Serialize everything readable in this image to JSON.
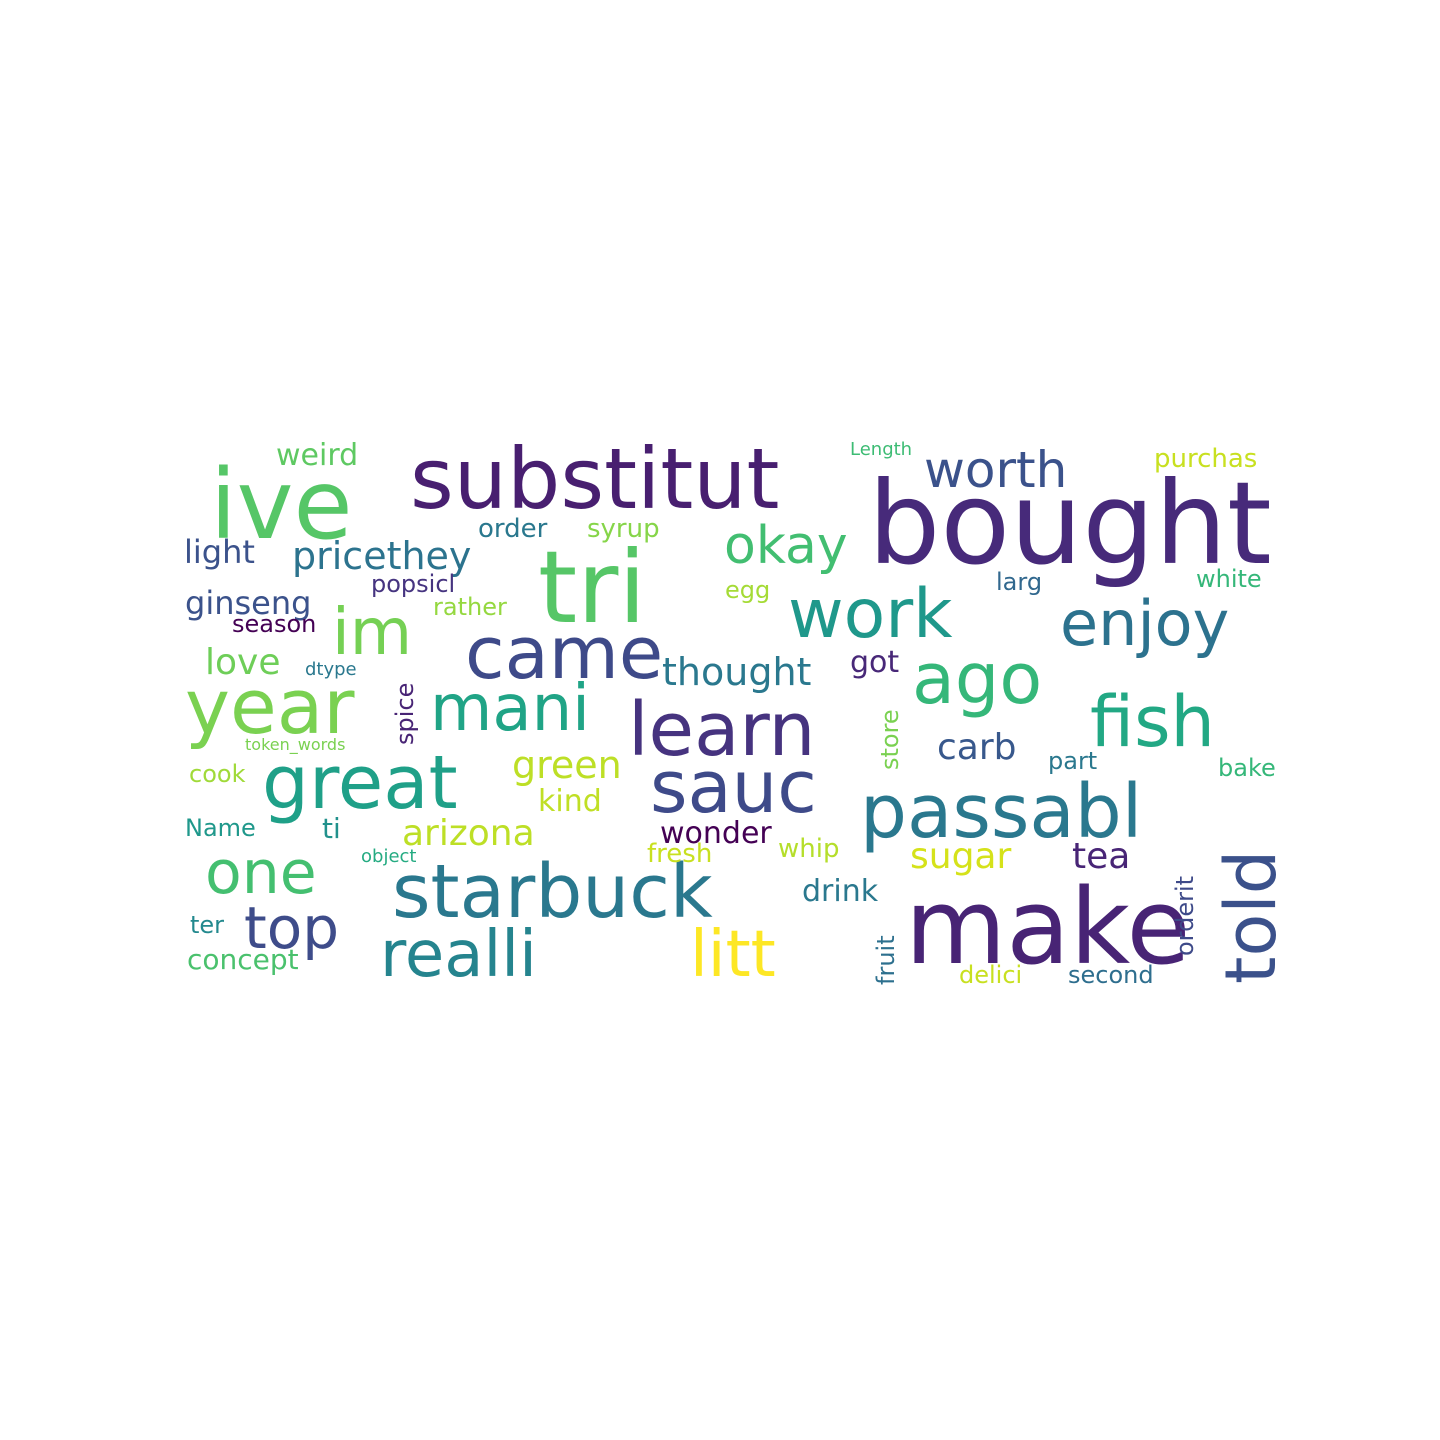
{
  "words": [
    {
      "text": "bought",
      "color": "#472a7a"
    },
    {
      "text": "make",
      "color": "#482475"
    },
    {
      "text": "tri",
      "color": "#56c667"
    },
    {
      "text": "ive",
      "color": "#56c667"
    },
    {
      "text": "substitut",
      "color": "#481f70"
    },
    {
      "text": "year",
      "color": "#7ad151"
    },
    {
      "text": "passabl",
      "color": "#2a788e"
    },
    {
      "text": "learn",
      "color": "#46337f"
    },
    {
      "text": "starbuck",
      "color": "#2a788e"
    },
    {
      "text": "great",
      "color": "#1fa088"
    },
    {
      "text": "came",
      "color": "#3e4a89"
    },
    {
      "text": "sauc",
      "color": "#3e4a89"
    },
    {
      "text": "fish",
      "color": "#22a884"
    },
    {
      "text": "ago",
      "color": "#35b779"
    },
    {
      "text": "told",
      "color": "#3b518b"
    },
    {
      "text": "work",
      "color": "#1f988b"
    },
    {
      "text": "realli",
      "color": "#25848e"
    },
    {
      "text": "mani",
      "color": "#20a486"
    },
    {
      "text": "im",
      "color": "#75d054"
    },
    {
      "text": "enjoy",
      "color": "#2c728e"
    },
    {
      "text": "litt",
      "color": "#fde725"
    },
    {
      "text": "one",
      "color": "#44bf70"
    },
    {
      "text": "top",
      "color": "#3e4c8a"
    },
    {
      "text": "okay",
      "color": "#42be71"
    },
    {
      "text": "worth",
      "color": "#3b528b"
    },
    {
      "text": "thought",
      "color": "#2a788e"
    },
    {
      "text": "pricethey",
      "color": "#2c738e"
    },
    {
      "text": "green",
      "color": "#bddf26"
    },
    {
      "text": "arizona",
      "color": "#bddf26"
    },
    {
      "text": "carb",
      "color": "#38588c"
    },
    {
      "text": "sugar",
      "color": "#d5e21a"
    },
    {
      "text": "tea",
      "color": "#482576"
    },
    {
      "text": "wonder",
      "color": "#440154"
    },
    {
      "text": "drink",
      "color": "#2a788e"
    },
    {
      "text": "love",
      "color": "#6ece58"
    },
    {
      "text": "ginseng",
      "color": "#3b528b"
    },
    {
      "text": "light",
      "color": "#3b528b"
    },
    {
      "text": "weird",
      "color": "#5ec962"
    },
    {
      "text": "kind",
      "color": "#c0df25"
    },
    {
      "text": "got",
      "color": "#482878"
    },
    {
      "text": "order",
      "color": "#2a788e"
    },
    {
      "text": "syrup",
      "color": "#86d549"
    },
    {
      "text": "purchas",
      "color": "#c8e020"
    },
    {
      "text": "Length",
      "color": "#3dbc74"
    },
    {
      "text": "white",
      "color": "#35b779"
    },
    {
      "text": "larg",
      "color": "#31688e"
    },
    {
      "text": "popsicl",
      "color": "#463480"
    },
    {
      "text": "rather",
      "color": "#95d840"
    },
    {
      "text": "egg",
      "color": "#a5db36"
    },
    {
      "text": "season",
      "color": "#440154"
    },
    {
      "text": "dtype",
      "color": "#2a788e"
    },
    {
      "text": "spice",
      "color": "#482475"
    },
    {
      "text": "token_words",
      "color": "#7ad151"
    },
    {
      "text": "store",
      "color": "#7ad151"
    },
    {
      "text": "part",
      "color": "#2a788e"
    },
    {
      "text": "bake",
      "color": "#35b779"
    },
    {
      "text": "cook",
      "color": "#a0da39"
    },
    {
      "text": "Name",
      "color": "#1f988b"
    },
    {
      "text": "ti",
      "color": "#21918c"
    },
    {
      "text": "object",
      "color": "#25ab82"
    },
    {
      "text": "fresh",
      "color": "#c8e020"
    },
    {
      "text": "whip",
      "color": "#b5de2b"
    },
    {
      "text": "orderit",
      "color": "#3e4a89"
    },
    {
      "text": "ter",
      "color": "#23898e"
    },
    {
      "text": "concept",
      "color": "#4ac16d"
    },
    {
      "text": "fruit",
      "color": "#2d708e"
    },
    {
      "text": "delici",
      "color": "#c8e020"
    },
    {
      "text": "second",
      "color": "#2e6e8e"
    }
  ]
}
